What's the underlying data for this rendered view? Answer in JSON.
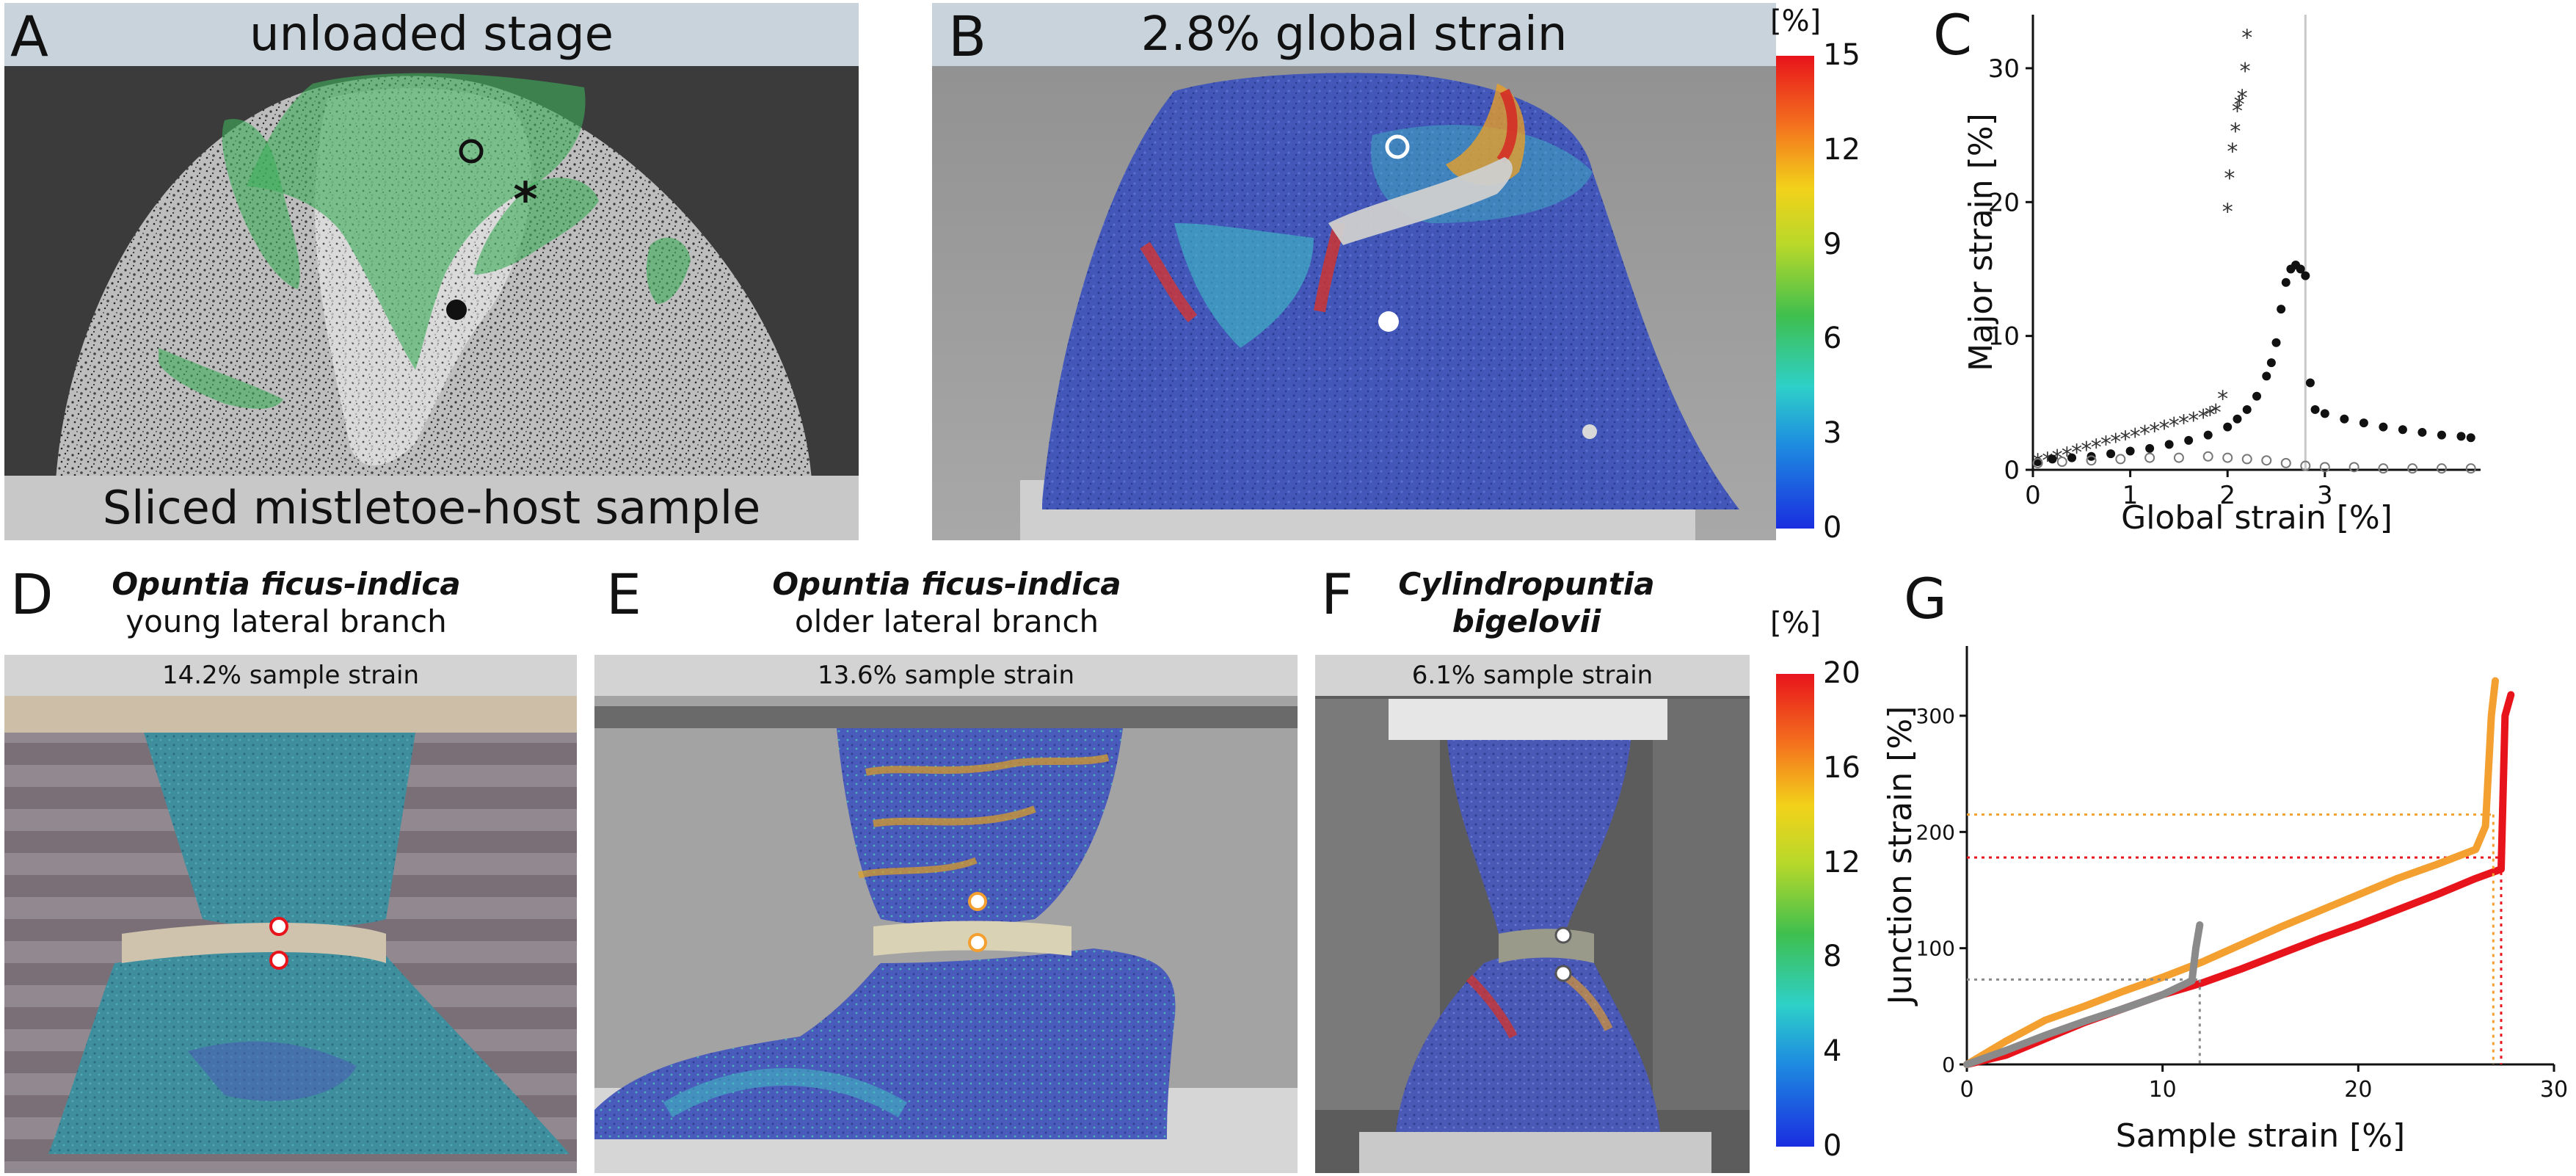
{
  "panel_a": {
    "letter": "A",
    "title": "unloaded stage",
    "caption": "Sliced mistletoe-host sample"
  },
  "panel_b": {
    "letter": "B",
    "title": "2.8% global strain"
  },
  "colorbar_top": {
    "unit": "[%]",
    "ticks": [
      "15",
      "12",
      "9",
      "6",
      "3",
      "0"
    ]
  },
  "panel_c": {
    "letter": "C"
  },
  "panel_d": {
    "letter": "D",
    "species": "Opuntia ficus-indica",
    "subtitle": "young lateral branch",
    "strain": "14.2% sample strain"
  },
  "panel_e": {
    "letter": "E",
    "species": "Opuntia ficus-indica",
    "subtitle": "older lateral branch",
    "strain": "13.6% sample strain"
  },
  "panel_f": {
    "letter": "F",
    "species_line1": "Cylindropuntia",
    "species_line2": "bigelovii",
    "strain": "6.1% sample strain"
  },
  "colorbar_bottom": {
    "unit": "[%]",
    "ticks": [
      "20",
      "16",
      "12",
      "8",
      "4",
      "0"
    ]
  },
  "panel_g": {
    "letter": "G"
  },
  "colors": {
    "title_bar": "#c8d3dc",
    "strain_bar": "#d3d3d3",
    "overlay_green": "#3fae5a",
    "opuntia_young": "#e8141b",
    "opuntia_old": "#f4a030",
    "cylindropuntia": "#8a8a8a"
  },
  "chart_data": [
    {
      "type": "scatter",
      "panel": "C",
      "xlabel": "Global strain [%]",
      "ylabel": "Major strain [%]",
      "xlim": [
        0,
        4.6
      ],
      "ylim": [
        0,
        34
      ],
      "xticks": [
        "0",
        "1",
        "2",
        "3"
      ],
      "yticks": [
        "0",
        "10",
        "20",
        "30"
      ],
      "vline_x": 2.8,
      "grid": false,
      "series": [
        {
          "marker": "asterisk",
          "x": [
            0.05,
            0.15,
            0.25,
            0.35,
            0.45,
            0.55,
            0.65,
            0.75,
            0.85,
            0.95,
            1.05,
            1.15,
            1.25,
            1.35,
            1.45,
            1.55,
            1.65,
            1.75,
            1.82,
            1.88,
            1.95,
            2.0,
            2.02,
            2.05,
            2.08,
            2.1,
            2.12,
            2.15,
            2.18,
            2.2
          ],
          "y": [
            0.8,
            0.9,
            1.1,
            1.3,
            1.5,
            1.7,
            1.9,
            2.1,
            2.3,
            2.5,
            2.7,
            2.9,
            3.1,
            3.3,
            3.5,
            3.7,
            3.9,
            4.1,
            4.3,
            4.5,
            5.5,
            19.5,
            22.0,
            24.0,
            25.5,
            27.0,
            27.5,
            28.0,
            30.0,
            32.5
          ]
        },
        {
          "marker": "filled-circle",
          "x": [
            0.05,
            0.2,
            0.4,
            0.6,
            0.8,
            1.0,
            1.2,
            1.4,
            1.6,
            1.8,
            2.0,
            2.1,
            2.2,
            2.3,
            2.4,
            2.45,
            2.5,
            2.55,
            2.6,
            2.65,
            2.7,
            2.75,
            2.8,
            2.85,
            2.9,
            3.0,
            3.2,
            3.4,
            3.6,
            3.8,
            4.0,
            4.2,
            4.4,
            4.5
          ],
          "y": [
            0.6,
            0.8,
            0.9,
            1.0,
            1.2,
            1.4,
            1.6,
            1.9,
            2.2,
            2.6,
            3.2,
            3.8,
            4.5,
            5.5,
            7.0,
            8.0,
            9.5,
            12.0,
            14.0,
            15.0,
            15.3,
            15.0,
            14.5,
            6.5,
            4.5,
            4.2,
            3.8,
            3.5,
            3.2,
            3.0,
            2.8,
            2.6,
            2.5,
            2.4
          ]
        },
        {
          "marker": "open-circle",
          "x": [
            0.05,
            0.3,
            0.6,
            0.9,
            1.2,
            1.5,
            1.8,
            2.0,
            2.2,
            2.4,
            2.6,
            2.8,
            3.0,
            3.3,
            3.6,
            3.9,
            4.2,
            4.5
          ],
          "y": [
            0.5,
            0.6,
            0.7,
            0.8,
            0.9,
            0.9,
            1.0,
            0.9,
            0.8,
            0.7,
            0.5,
            0.3,
            0.2,
            0.2,
            0.1,
            0.1,
            0.1,
            0.1
          ]
        }
      ]
    },
    {
      "type": "line",
      "panel": "G",
      "xlabel": "Sample strain [%]",
      "ylabel": "Junction strain [%]",
      "xlim": [
        0,
        30
      ],
      "ylim": [
        0,
        360
      ],
      "xticks": [
        "0",
        "10",
        "20",
        "30"
      ],
      "yticks": [
        "0",
        "100",
        "200",
        "300"
      ],
      "grid": false,
      "series": [
        {
          "color": "#e8141b",
          "x": [
            0,
            2,
            4,
            6,
            8,
            10,
            12,
            14,
            16,
            18,
            20,
            22,
            24,
            26,
            27.3,
            27.5,
            27.8
          ],
          "y": [
            0,
            8,
            22,
            36,
            48,
            60,
            70,
            82,
            95,
            108,
            120,
            133,
            146,
            160,
            168,
            300,
            318
          ],
          "marker_x": 27.3,
          "marker_y": 178
        },
        {
          "color": "#f4a030",
          "x": [
            0,
            2,
            4,
            6,
            8,
            10,
            12,
            14,
            16,
            18,
            20,
            22,
            24,
            26,
            26.5,
            26.8,
            27.0
          ],
          "y": [
            0,
            20,
            38,
            50,
            63,
            75,
            88,
            103,
            118,
            132,
            146,
            160,
            172,
            185,
            205,
            300,
            330
          ],
          "marker_x": 26.9,
          "marker_y": 215
        },
        {
          "color": "#8a8a8a",
          "x": [
            0,
            2,
            4,
            6,
            8,
            10,
            11.5,
            11.7,
            11.9
          ],
          "y": [
            0,
            12,
            25,
            37,
            48,
            60,
            72,
            100,
            120
          ],
          "marker_x": 11.9,
          "marker_y": 73
        }
      ]
    }
  ]
}
